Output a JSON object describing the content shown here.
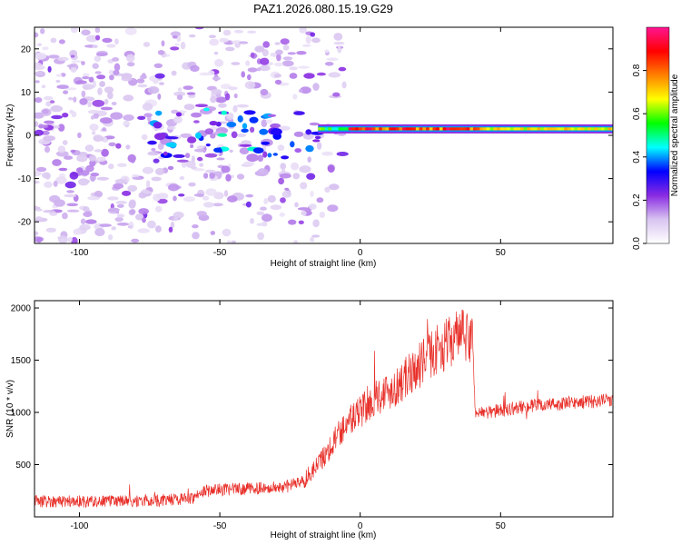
{
  "title": "PAZ1.2026.080.15.19.G29",
  "chart_data": [
    {
      "type": "heatmap",
      "xlabel": "Height of straight line (km)",
      "ylabel": "Frequency (Hz)",
      "xlim": [
        -116,
        90
      ],
      "ylim": [
        -25,
        25
      ],
      "xticks": [
        -100,
        -50,
        0,
        50
      ],
      "xtick_labels": [
        "-100",
        "-50",
        "0",
        "50"
      ],
      "yticks": [
        -20,
        -10,
        0,
        10,
        20
      ],
      "ytick_labels": [
        "-20",
        "-10",
        "0",
        "10",
        "20"
      ],
      "colorbar": {
        "label": "Normalized spectral amplitude",
        "range": [
          0,
          1
        ],
        "ticks": [
          0.0,
          0.2,
          0.4,
          0.6,
          0.8
        ],
        "tick_labels": [
          "0.0",
          "0.2",
          "0.4",
          "0.6",
          "0.8"
        ],
        "colors": [
          "#ffffff",
          "#d8c4f0",
          "#8a2be2",
          "#0000ff",
          "#00ffff",
          "#00ff00",
          "#ffff00",
          "#ff8000",
          "#ff0000",
          "#ff1493"
        ]
      },
      "features": {
        "strong_line_frequency_hz": 1.5,
        "strong_line_height_range_km": [
          -15,
          90
        ],
        "noisy_region_height_range_km": [
          -116,
          -15
        ]
      }
    },
    {
      "type": "line",
      "xlabel": "Height of straight line (km)",
      "ylabel": "SNR (10 * v/v)",
      "xlim": [
        -116,
        90
      ],
      "ylim": [
        0,
        2070
      ],
      "xticks": [
        -100,
        -50,
        0,
        50
      ],
      "xtick_labels": [
        "-100",
        "-50",
        "0",
        "50"
      ],
      "yticks": [
        500,
        1000,
        1500,
        2000
      ],
      "ytick_labels": [
        "500",
        "1000",
        "1500",
        "2000"
      ],
      "series": [
        {
          "name": "SNR",
          "color": "#e8302a",
          "x": [
            -116,
            -110,
            -100,
            -90,
            -80,
            -70,
            -60,
            -55,
            -50,
            -40,
            -30,
            -25,
            -20,
            -15,
            -10,
            -5,
            0,
            5,
            10,
            15,
            20,
            25,
            30,
            35,
            40,
            41,
            45,
            50,
            60,
            70,
            80,
            90
          ],
          "y": [
            150,
            150,
            150,
            150,
            150,
            160,
            180,
            250,
            260,
            270,
            280,
            300,
            350,
            500,
            700,
            900,
            1000,
            1150,
            1200,
            1300,
            1420,
            1560,
            1640,
            1740,
            1700,
            1000,
            1000,
            1020,
            1060,
            1080,
            1100,
            1120
          ]
        }
      ]
    }
  ]
}
